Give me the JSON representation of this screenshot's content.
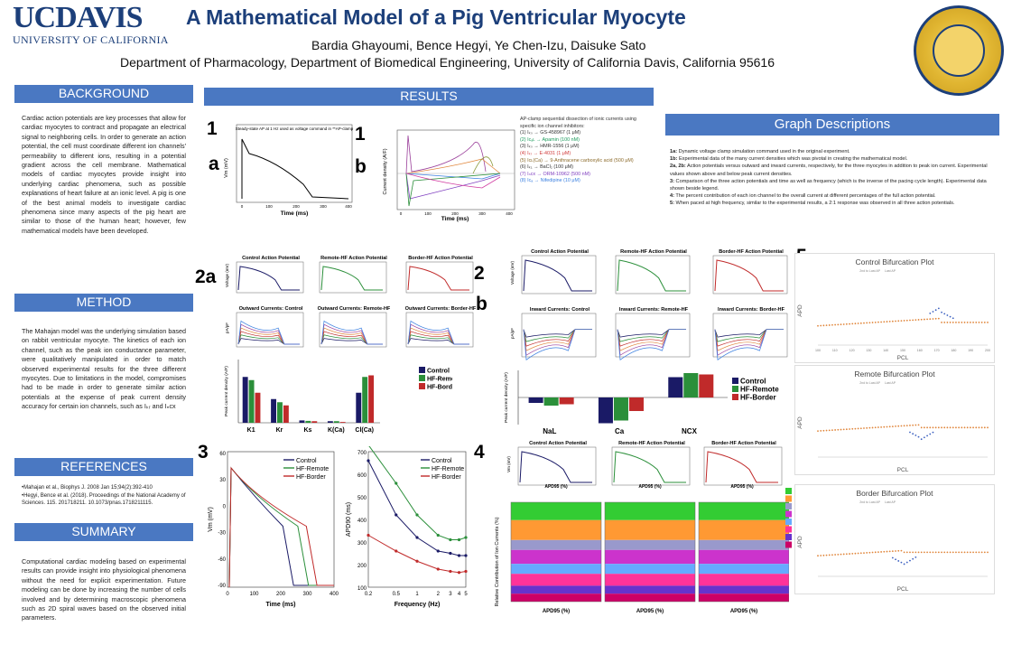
{
  "header": {
    "logo_uc": "UCDAVIS",
    "logo_sub": "UNIVERSITY OF CALIFORNIA",
    "title": "A Mathematical Model of a Pig Ventricular Myocyte",
    "authors": "Bardia Ghayoumi, Bence Hegyi, Ye Chen-Izu, Daisuke Sato",
    "affiliation": "Department of Pharmacology, Department of Biomedical Engineering, University of California Davis, California 95616",
    "seal_text": "THE UNIVERSITY OF CALIFORNIA"
  },
  "sections": {
    "background": {
      "title": "BACKGROUND",
      "text": "Cardiac action potentials are key processes that allow for cardiac myocytes to contract and propagate an electrical signal to neighboring cells. In order to generate an action potential, the cell must coordinate different ion channels' permeability to different ions, resulting in a potential gradient across the cell membrane. Mathematical models of cardiac myocytes provide insight into underlying cardiac phenomena, such as possible explanations of heart failure at an ionic level. A pig is one of the best animal models to investigate cardiac phenomena since many aspects of the pig heart are similar to those of the human heart; however, few mathematical models have been developed."
    },
    "method": {
      "title": "METHOD",
      "text": "The Mahajan model was the underlying simulation based on rabbit ventricular myocyte. The kinetics of each ion channel, such as the peak ion conductance parameter, were qualitatively manipulated in order to match observed experimental results for the three different myocytes. Due to limitations in the model, compromises had to be made in order to generate similar action potentials at the expense of peak current density accuracy for certain ion channels, such as Iₖᵣ and Iₙcx"
    },
    "references": {
      "title": "REFERENCES",
      "items": [
        "•Mahajan et al., Biophys J. 2008 Jan 15;94(2):392-410",
        "•Hegyi, Bence et al. (2018). Proceedings of the National Academy of Sciences. 115. 201718211. 10.1073/pnas.1718211115."
      ]
    },
    "summary": {
      "title": "SUMMARY",
      "text": "Computational cardiac modeling based on experimental results can provide insight into physiological phenomena without the need for explicit experimentation. Future modeling can be done by increasing the number of cells involved and by determining macroscopic phenomena such as 2D spiral waves based on the observed initial parameters."
    },
    "results": {
      "title": "RESULTS"
    },
    "graph_descriptions": {
      "title": "Graph Descriptions",
      "items": [
        {
          "k": "1a:",
          "t": " Dynamic voltage clamp simulation command used in the original experiment."
        },
        {
          "k": "1b:",
          "t": " Experimental data of the many current densities which was pivotal in creating the mathematical model."
        },
        {
          "k": "2a, 2b:",
          "t": " Action potentials versus outward and inward currents, respectively, for the three myocytes in addition to peak ion current. Experimental values shown above and below peak current densities."
        },
        {
          "k": "3:",
          "t": " Comparison of the three action potentials and time as well as frequency (which is the inverse of the pacing cycle length). Experimental data shown beside legend."
        },
        {
          "k": "4:",
          "t": " The percent contribution of each ion channel to the overall current at different percentages of the full action potential."
        },
        {
          "k": "5:",
          "t": " When paced at high frequency, similar to the experimental results, a 2:1 response was observed in all three action potentials."
        }
      ]
    }
  },
  "figures": {
    "labels": {
      "f1": "1",
      "f1a": "a",
      "f1b_1": "1",
      "f1b_2": "b",
      "f2a": "2a",
      "f2b_1": "2",
      "f2b_2": "b",
      "f3": "3",
      "f4": "4",
      "f5": "5"
    },
    "fig1a": {
      "note": "Steady-state AP at 1 Hz used as voltage command in **AP-clamp",
      "xlabel": "Time (ms)",
      "ylabel": "Vm (mV)",
      "yticks": [
        "20",
        "0",
        "-20",
        "-40",
        "-60",
        "-80"
      ],
      "xticks": [
        "0",
        "100",
        "200",
        "300",
        "400"
      ]
    },
    "fig1b": {
      "caption_title": "AP-clamp sequential dissection of ionic currents using specific ion channel inhibitors:",
      "items": [
        "(1) Iₖₛ → GS-458967 (1 μM)",
        "(2) Iᴄₐʟ → Apamin (100 nM)",
        "(3) Iₖₛ → HMR-1556 (1 μM)",
        "(4) Iₖᵣ → E-4031 (1 μM)",
        "(5) Iᴄʟ(Ca) → 9-Anthracene carboxylic acid (500 μM)",
        "(6) Iₖ₁ → BaCl₂ (100 μM)",
        "(7) Iₙcx → ORM-10962 (500 nM)",
        "(8) Iᴄₐ → Nifedipine (10 μM)"
      ],
      "xlabel": "Time (ms)",
      "ylabel": "Current density (A/F)",
      "xticks": [
        "0",
        "100",
        "200",
        "300",
        "400"
      ]
    },
    "fig2a": {
      "ap_titles": [
        "Control Action Potential",
        "Remote-HF Action Potential",
        "Border-HF Action Potential"
      ],
      "cur_titles": [
        "Outward Currents: Control",
        "Outward Currents: Remote-HF",
        "Outward Currents: Border-HF"
      ],
      "ylabel_ap": "Voltage (mV)",
      "ylabel_cur": "pA/pF",
      "bar_ylabel": "Peak current density (A/F)",
      "bar_categories": [
        "K1",
        "Kr",
        "Ks",
        "K(Ca)",
        "Cl(Ca)"
      ],
      "legend": [
        "Control",
        "HF-Remote",
        "HF-Border"
      ],
      "legend_cur": [
        "Ks",
        "Kr",
        "K1",
        "Ito",
        "ClCa"
      ]
    },
    "fig2b": {
      "ap_titles": [
        "Control Action Potential",
        "Remote-HF Action Potential",
        "Border-HF Action Potential"
      ],
      "cur_titles": [
        "Inward Currents: Control",
        "Inward Currents: Remote-HF",
        "Inward Currents: Border-HF"
      ],
      "ylabel_ap": "Voltage (mV)",
      "ylabel_cur": "pA/pF",
      "xlabel": "Time (ms)",
      "bar_ylabel": "Peak current density (A/F)",
      "bar_categories": [
        "NaL",
        "Ca",
        "NCX"
      ],
      "legend": [
        "Control",
        "HF-Remote",
        "HF-Border"
      ]
    },
    "fig3": {
      "left": {
        "xlabel": "Time (ms)",
        "ylabel": "Vm (mV)",
        "yticks": [
          "60",
          "30",
          "0",
          "-30",
          "-60",
          "-90"
        ],
        "xticks": [
          "0",
          "100",
          "200",
          "300",
          "400"
        ],
        "legend": [
          "Control",
          "HF-Remote",
          "HF-Border"
        ]
      },
      "right": {
        "xlabel": "Frequency (Hz)",
        "ylabel": "APD90 (ms)",
        "yticks": [
          "700",
          "600",
          "500",
          "400",
          "300",
          "200",
          "100"
        ],
        "xticks": [
          "0.2",
          "0.5",
          "1",
          "2",
          "3",
          "4",
          "5"
        ],
        "legend": [
          "Control",
          "HF-Remote",
          "HF-Border"
        ]
      }
    },
    "fig4": {
      "ap_titles": [
        "Control Action Potential",
        "Remote-HF Action Potential",
        "Border-HF Action Potential"
      ],
      "xlabel": "APD95 (%)",
      "ylabel_top": "Vm (mV)",
      "ylabel_bottom": "Relative Contribution of Ion Currents (%)",
      "legend": [
        "INa",
        "ICa",
        "Ito",
        "IKr",
        "IKs",
        "IK1",
        "INCX",
        "INaK"
      ]
    },
    "fig5": {
      "titles": [
        "Control Bifurcation Plot",
        "Remote Bifurcation Plot",
        "Border Bifurcation Plot"
      ],
      "xlabel": "PCL",
      "ylabel": "APD",
      "legend": [
        "2nd to Last AP",
        "Last AP"
      ],
      "xticks": [
        "100",
        "110",
        "120",
        "130",
        "140",
        "150",
        "160",
        "170",
        "180",
        "190",
        "200"
      ]
    }
  },
  "chart_data": [
    {
      "type": "bar",
      "id": "fig2a-peak",
      "categories": [
        "K1",
        "Kr",
        "Ks",
        "K(Ca)",
        "Cl(Ca)"
      ],
      "series": [
        {
          "name": "Control",
          "values": [
            2.9,
            1.5,
            0.15,
            0.1,
            1.9
          ]
        },
        {
          "name": "HF-Remote",
          "values": [
            2.7,
            1.3,
            0.12,
            0.1,
            2.9
          ]
        },
        {
          "name": "HF-Border",
          "values": [
            1.9,
            1.1,
            0.1,
            0.05,
            3.0
          ]
        }
      ],
      "ylim": [
        0,
        4
      ],
      "ylabel": "Peak current density (A/F)"
    },
    {
      "type": "bar",
      "id": "fig2b-peak",
      "categories": [
        "NaL",
        "Ca",
        "NCX"
      ],
      "series": [
        {
          "name": "Control",
          "values": [
            -0.4,
            -1.9,
            1.5
          ]
        },
        {
          "name": "HF-Remote",
          "values": [
            -0.6,
            -1.7,
            1.8
          ]
        },
        {
          "name": "HF-Border",
          "values": [
            -0.5,
            -1.0,
            1.7
          ]
        }
      ],
      "ylim": [
        -2,
        2
      ],
      "ylabel": "Peak current density (A/F)"
    },
    {
      "type": "line",
      "id": "fig3-apd",
      "x": [
        0.2,
        0.5,
        1,
        2,
        3,
        4,
        5
      ],
      "series": [
        {
          "name": "Control",
          "values": [
            660,
            420,
            320,
            260,
            250,
            240,
            240
          ]
        },
        {
          "name": "HF-Remote",
          "values": [
            880,
            560,
            420,
            330,
            310,
            310,
            320
          ]
        },
        {
          "name": "HF-Border",
          "values": [
            330,
            260,
            215,
            180,
            170,
            165,
            170
          ]
        }
      ],
      "xlabel": "Frequency (Hz)",
      "ylabel": "APD90 (ms)",
      "ylim": [
        100,
        700
      ]
    }
  ]
}
